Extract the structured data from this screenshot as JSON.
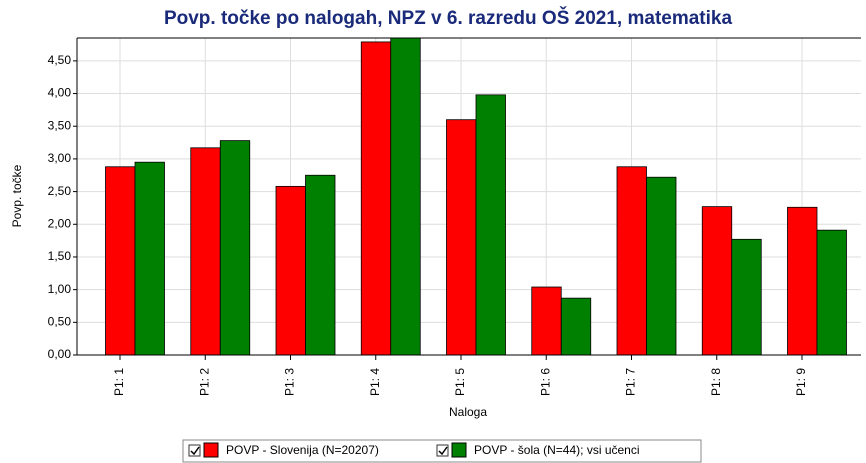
{
  "chart_data": {
    "type": "bar",
    "title": "Povp. točke po nalogah, NPZ v 6. razredu OŠ 2021, matematika",
    "y_label": "Povp. točke",
    "x_label": "Naloga",
    "categories": [
      "P1: 1",
      "P1: 2",
      "P1: 3",
      "P1: 4",
      "P1: 5",
      "P1: 6",
      "P1: 7",
      "P1: 8",
      "P1: 9"
    ],
    "series": [
      {
        "name": "POVP - Slovenija (N=20207)",
        "color": "#ff0000",
        "values": [
          2.88,
          3.17,
          2.58,
          4.79,
          3.6,
          1.04,
          2.88,
          2.27,
          2.26
        ]
      },
      {
        "name": "POVP - šola (N=44); vsi učenci",
        "color": "#008000",
        "values": [
          2.95,
          3.28,
          2.75,
          4.85,
          3.98,
          0.87,
          2.72,
          1.77,
          1.91
        ]
      }
    ],
    "ylim": [
      0,
      4.85
    ],
    "yticks": [
      {
        "value": 0,
        "label": "0,00"
      },
      {
        "value": 0.5,
        "label": "0,50"
      },
      {
        "value": 1,
        "label": "1,00"
      },
      {
        "value": 1.5,
        "label": "1,50"
      },
      {
        "value": 2,
        "label": "2,00"
      },
      {
        "value": 2.5,
        "label": "2,50"
      },
      {
        "value": 3,
        "label": "3,00"
      },
      {
        "value": 3.5,
        "label": "3,50"
      },
      {
        "value": 4,
        "label": "4,00"
      },
      {
        "value": 4.5,
        "label": "4,50"
      }
    ],
    "grid": true
  }
}
